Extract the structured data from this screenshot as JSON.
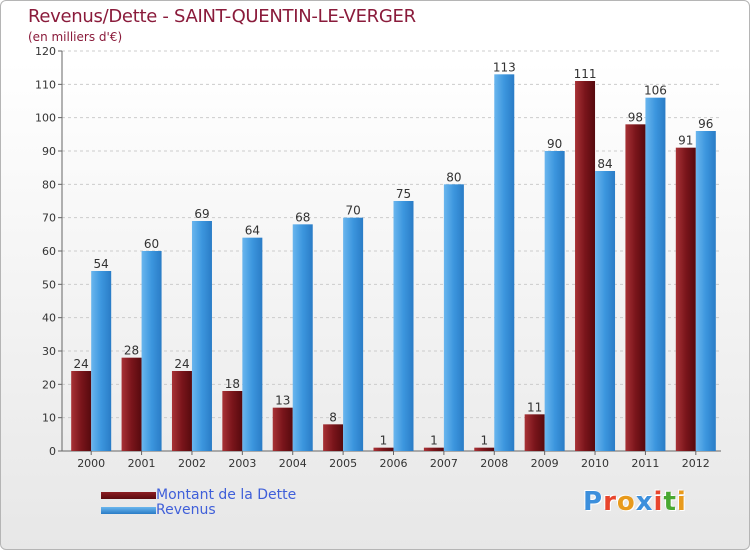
{
  "title": "Revenus/Dette - SAINT-QUENTIN-LE-VERGER",
  "subtitle": "(en milliers d'€)",
  "logo_text": "Proxiti",
  "colors": {
    "dette": "#6e1016",
    "revenus": "#3c96de",
    "title": "#8a1b3b",
    "legend_text": "#3f5fd9"
  },
  "legend": [
    {
      "label": "Montant de la Dette"
    },
    {
      "label": "Revenus"
    }
  ],
  "chart_data": {
    "type": "bar",
    "title": "Revenus/Dette - SAINT-QUENTIN-LE-VERGER",
    "subtitle": "(en milliers d'€)",
    "categories": [
      "2000",
      "2001",
      "2002",
      "2003",
      "2004",
      "2005",
      "2006",
      "2007",
      "2008",
      "2009",
      "2010",
      "2011",
      "2012"
    ],
    "series": [
      {
        "name": "Montant de la Dette",
        "values": [
          24,
          28,
          24,
          18,
          13,
          8,
          1,
          1,
          1,
          11,
          111,
          98,
          91
        ]
      },
      {
        "name": "Revenus",
        "values": [
          54,
          60,
          69,
          64,
          68,
          70,
          75,
          80,
          113,
          90,
          84,
          106,
          96
        ]
      }
    ],
    "ylim": [
      0,
      120
    ],
    "yticks": [
      "0",
      "10",
      "20",
      "30",
      "40",
      "50",
      "60",
      "70",
      "80",
      "90",
      "100",
      "110",
      "120"
    ],
    "grid": true,
    "legend_position": "bottom-left"
  }
}
